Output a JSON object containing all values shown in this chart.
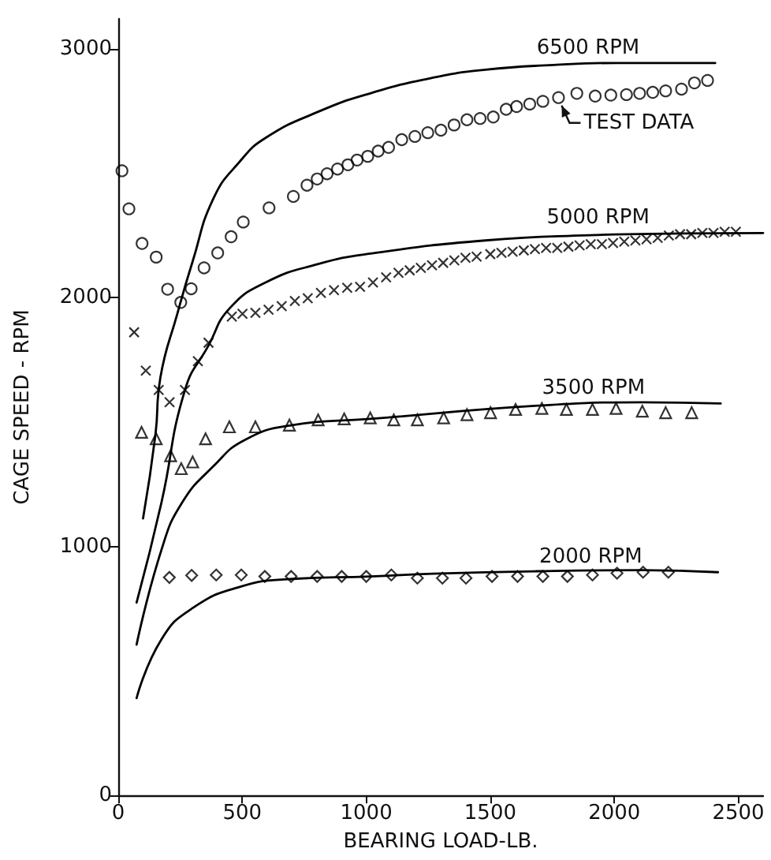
{
  "chart_data": {
    "type": "line",
    "xlabel": "BEARING LOAD-LB.",
    "ylabel": "CAGE SPEED - RPM",
    "xlim": [
      0,
      2600
    ],
    "ylim": [
      0,
      3120
    ],
    "xticks": [
      0,
      500,
      1000,
      1500,
      2000,
      2500
    ],
    "yticks": [
      0,
      1000,
      2000,
      3000
    ],
    "grid": false,
    "annotations": [
      "6500 RPM",
      "5000 RPM",
      "3500 RPM",
      "2000 RPM",
      "TEST DATA"
    ],
    "series": [
      {
        "color": "#000000",
        "marker": "none",
        "line_style": "solid",
        "x": [
          100,
          150,
          170,
          238,
          300,
          384,
          490,
          594,
          806,
          1016,
          1269,
          1480,
          1754,
          2007,
          2407
        ],
        "values": [
          1113,
          1450,
          1680,
          1935,
          2146,
          2399,
          2547,
          2642,
          2747,
          2821,
          2884,
          2916,
          2935,
          2943,
          2943
        ]
      },
      {
        "color": "#000000",
        "marker": "none",
        "line_style": "solid",
        "x": [
          74,
          174,
          269,
          364,
          448,
          594,
          806,
          1016,
          1480,
          1901,
          2281,
          2600
        ],
        "values": [
          775,
          1176,
          1629,
          1808,
          1956,
          2061,
          2135,
          2177,
          2230,
          2251,
          2258,
          2260
        ]
      },
      {
        "color": "#000000",
        "marker": "none",
        "line_style": "solid",
        "x": [
          74,
          174,
          257,
          384,
          511,
          701,
          1016,
          1691,
          2113,
          2429
        ],
        "values": [
          606,
          986,
          1176,
          1323,
          1429,
          1488,
          1513,
          1566,
          1580,
          1575
        ]
      },
      {
        "color": "#000000",
        "marker": "none",
        "line_style": "solid",
        "x": [
          74,
          174,
          300,
          490,
          701,
          1016,
          1269,
          1691,
          2113,
          2418
        ],
        "values": [
          391,
          627,
          753,
          838,
          870,
          880,
          891,
          901,
          905,
          897
        ]
      },
      {
        "type": "scatter",
        "color": "#000000",
        "marker": "circle",
        "x": [
          15,
          43,
          96,
          153,
          199,
          252,
          294,
          346,
          401,
          455,
          504,
          608,
          706,
          761,
          802,
          842,
          884,
          926,
          963,
          1006,
          1048,
          1090,
          1143,
          1196,
          1248,
          1301,
          1354,
          1406,
          1459,
          1512,
          1564,
          1606,
          1659,
          1712,
          1775,
          1849,
          1923,
          1986,
          2049,
          2102,
          2155,
          2207,
          2271,
          2323,
          2376
        ],
        "values": [
          2510,
          2357,
          2218,
          2163,
          2034,
          1981,
          2036,
          2120,
          2180,
          2245,
          2304,
          2361,
          2407,
          2452,
          2477,
          2498,
          2517,
          2534,
          2553,
          2568,
          2589,
          2604,
          2635,
          2648,
          2663,
          2673,
          2694,
          2715,
          2720,
          2726,
          2757,
          2768,
          2778,
          2789,
          2804,
          2821,
          2810,
          2814,
          2816,
          2821,
          2825,
          2831,
          2838,
          2863,
          2873
        ]
      },
      {
        "type": "scatter",
        "color": "#000000",
        "marker": "cross",
        "x": [
          64,
          111,
          163,
          207,
          269,
          321,
          364,
          458,
          501,
          553,
          606,
          659,
          712,
          764,
          817,
          870,
          923,
          975,
          1027,
          1080,
          1130,
          1175,
          1220,
          1265,
          1310,
          1355,
          1400,
          1445,
          1500,
          1545,
          1590,
          1635,
          1680,
          1725,
          1770,
          1815,
          1860,
          1905,
          1950,
          1995,
          2040,
          2085,
          2130,
          2175,
          2220,
          2265,
          2310,
          2355,
          2400,
          2445,
          2490
        ],
        "values": [
          1861,
          1707,
          1629,
          1580,
          1629,
          1745,
          1819,
          1924,
          1935,
          1939,
          1952,
          1966,
          1987,
          1998,
          2019,
          2030,
          2040,
          2044,
          2061,
          2082,
          2100,
          2110,
          2120,
          2130,
          2140,
          2150,
          2160,
          2165,
          2175,
          2180,
          2185,
          2190,
          2195,
          2200,
          2200,
          2205,
          2210,
          2215,
          2215,
          2220,
          2225,
          2230,
          2235,
          2240,
          2250,
          2255,
          2255,
          2260,
          2260,
          2265,
          2265
        ]
      },
      {
        "type": "scatter",
        "color": "#000000",
        "marker": "triangle",
        "x": [
          94,
          153,
          211,
          254,
          300,
          352,
          448,
          553,
          690,
          806,
          911,
          1016,
          1111,
          1206,
          1312,
          1406,
          1501,
          1602,
          1708,
          1807,
          1912,
          2007,
          2113,
          2207,
          2312
        ],
        "values": [
          1459,
          1433,
          1365,
          1313,
          1340,
          1433,
          1481,
          1481,
          1488,
          1509,
          1513,
          1517,
          1509,
          1509,
          1517,
          1530,
          1538,
          1551,
          1555,
          1551,
          1551,
          1555,
          1544,
          1538,
          1538
        ]
      },
      {
        "type": "scatter",
        "color": "#000000",
        "marker": "diamond",
        "x": [
          206,
          296,
          395,
          496,
          591,
          697,
          802,
          901,
          1000,
          1101,
          1206,
          1307,
          1402,
          1507,
          1610,
          1712,
          1811,
          1912,
          2011,
          2116,
          2218
        ],
        "values": [
          876,
          884,
          886,
          886,
          880,
          880,
          880,
          880,
          880,
          886,
          873,
          873,
          873,
          880,
          880,
          880,
          880,
          886,
          893,
          897,
          897
        ]
      }
    ]
  }
}
